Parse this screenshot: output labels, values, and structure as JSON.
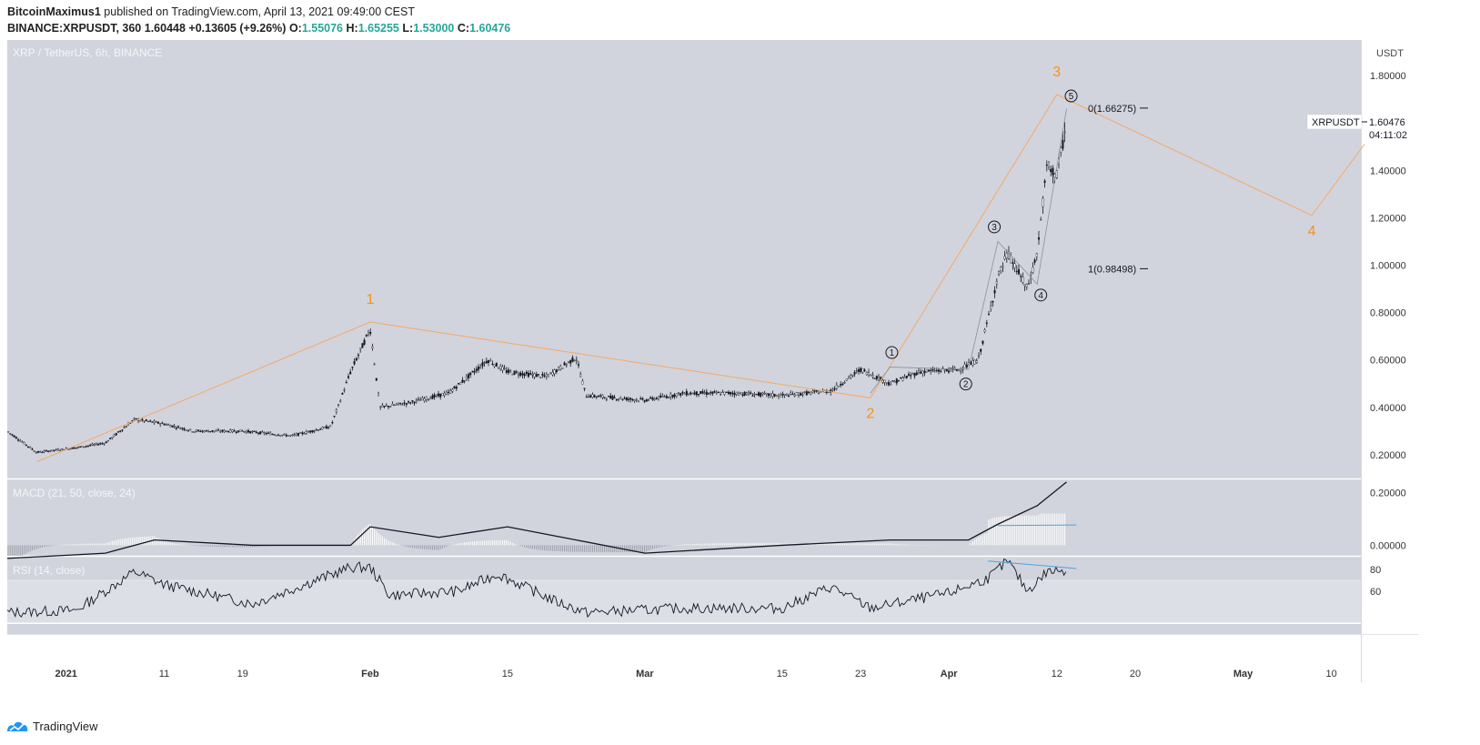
{
  "header": {
    "author": "BitcoinMaximus1",
    "published_text": "published on TradingView.com, April 13, 2021 09:49:00 CEST",
    "symbol_line": "BINANCE:XRPUSDT, 360",
    "last": "1.60448",
    "change": "+0.13605 (+9.26%)",
    "o_label": "O:",
    "o_val": "1.55076",
    "h_label": "H:",
    "h_val": "1.65255",
    "l_label": "L:",
    "l_val": "1.53000",
    "c_label": "C:",
    "c_val": "1.60476"
  },
  "footer": {
    "brand": "TradingView"
  },
  "colors": {
    "panel_bg": "#d1d4dc",
    "candle": "#131722",
    "wave_line": "#f5a86a",
    "wave_label": "#f7931a",
    "trend_line": "#4aa3df",
    "up_value": "#26a69a"
  },
  "chart_data": [
    {
      "type": "line",
      "title": "XRP / TetherUS, 6h, BINANCE",
      "currency_label": "USDT",
      "ylim": [
        0.1,
        1.95
      ],
      "y_ticks": [
        "1.80000",
        "1.60000",
        "1.40000",
        "1.20000",
        "1.00000",
        "0.80000",
        "0.60000",
        "0.40000",
        "0.20000"
      ],
      "x_ticks": [
        "2021",
        "11",
        "19",
        "Feb",
        "15",
        "Mar",
        "15",
        "23",
        "Apr",
        "12",
        "20",
        "May",
        "10"
      ],
      "series": [
        {
          "x": [
            "2020-12-26",
            "2020-12-29",
            "2021-01-02",
            "2021-01-05",
            "2021-01-08",
            "2021-01-11",
            "2021-01-14",
            "2021-01-19",
            "2021-01-24",
            "2021-01-28",
            "2021-01-30",
            "2021-02-01",
            "2021-02-02",
            "2021-02-05",
            "2021-02-09",
            "2021-02-13",
            "2021-02-15",
            "2021-02-19",
            "2021-02-22",
            "2021-02-23",
            "2021-02-26",
            "2021-03-01",
            "2021-03-05",
            "2021-03-10",
            "2021-03-15",
            "2021-03-20",
            "2021-03-23",
            "2021-03-26",
            "2021-03-29",
            "2021-04-02",
            "2021-04-04",
            "2021-04-06",
            "2021-04-07",
            "2021-04-09",
            "2021-04-10",
            "2021-04-11",
            "2021-04-12",
            "2021-04-13"
          ],
          "values": [
            0.3,
            0.21,
            0.23,
            0.25,
            0.35,
            0.33,
            0.3,
            0.3,
            0.28,
            0.32,
            0.55,
            0.73,
            0.4,
            0.42,
            0.46,
            0.6,
            0.55,
            0.53,
            0.61,
            0.45,
            0.44,
            0.43,
            0.46,
            0.46,
            0.45,
            0.47,
            0.56,
            0.5,
            0.55,
            0.56,
            0.6,
            0.95,
            1.05,
            0.9,
            1.05,
            1.42,
            1.38,
            1.6
          ]
        }
      ],
      "price_label": {
        "symbol": "XRPUSDT",
        "value": "1.60476",
        "countdown": "04:11:02"
      },
      "annotations": {
        "waves": [
          {
            "label": "1",
            "x": "2021-02-01",
            "y": 0.76
          },
          {
            "label": "2",
            "x": "2021-03-24",
            "y": 0.44
          },
          {
            "label": "3",
            "x": "2021-04-12",
            "y": 1.72
          },
          {
            "label": "4",
            "x": "2021-05-08",
            "y": 1.21
          }
        ],
        "subwaves": [
          {
            "label": "1",
            "x": "2021-03-26",
            "y": 0.57
          },
          {
            "label": "2",
            "x": "2021-04-03",
            "y": 0.56
          },
          {
            "label": "3",
            "x": "2021-04-06",
            "y": 1.1
          },
          {
            "label": "4",
            "x": "2021-04-10",
            "y": 0.92
          },
          {
            "label": "5",
            "x": "2021-04-13",
            "y": 1.66
          }
        ],
        "fib_levels": [
          {
            "label": "0(1.66275)",
            "value": 1.66275
          },
          {
            "label": "1(0.98498)",
            "value": 0.98498
          }
        ]
      }
    },
    {
      "type": "line",
      "title": "MACD (21, 50, close, 24)",
      "y_ticks": [
        "0.20000",
        "0.00000"
      ],
      "series": [
        {
          "x": [
            "2020-12-26",
            "2021-01-05",
            "2021-01-10",
            "2021-01-20",
            "2021-01-30",
            "2021-02-01",
            "2021-02-08",
            "2021-02-15",
            "2021-02-22",
            "2021-03-01",
            "2021-03-15",
            "2021-03-26",
            "2021-04-03",
            "2021-04-06",
            "2021-04-10",
            "2021-04-13"
          ],
          "values": [
            -0.05,
            -0.03,
            0.02,
            0.0,
            0.0,
            0.07,
            0.03,
            0.07,
            0.02,
            -0.03,
            0.0,
            0.02,
            0.02,
            0.08,
            0.15,
            0.24
          ]
        }
      ]
    },
    {
      "type": "line",
      "title": "RSI (14, close)",
      "y_ticks": [
        "80",
        "60"
      ],
      "series": [
        {
          "x": [
            "2020-12-26",
            "2021-01-02",
            "2021-01-08",
            "2021-01-11",
            "2021-01-20",
            "2021-01-30",
            "2021-02-01",
            "2021-02-03",
            "2021-02-10",
            "2021-02-14",
            "2021-02-20",
            "2021-02-23",
            "2021-03-05",
            "2021-03-15",
            "2021-03-20",
            "2021-03-24",
            "2021-04-01",
            "2021-04-05",
            "2021-04-07",
            "2021-04-09",
            "2021-04-11",
            "2021-04-13"
          ],
          "values": [
            40,
            42,
            78,
            66,
            48,
            82,
            82,
            56,
            60,
            76,
            50,
            40,
            44,
            44,
            64,
            44,
            58,
            72,
            88,
            60,
            78,
            80
          ]
        }
      ]
    }
  ]
}
